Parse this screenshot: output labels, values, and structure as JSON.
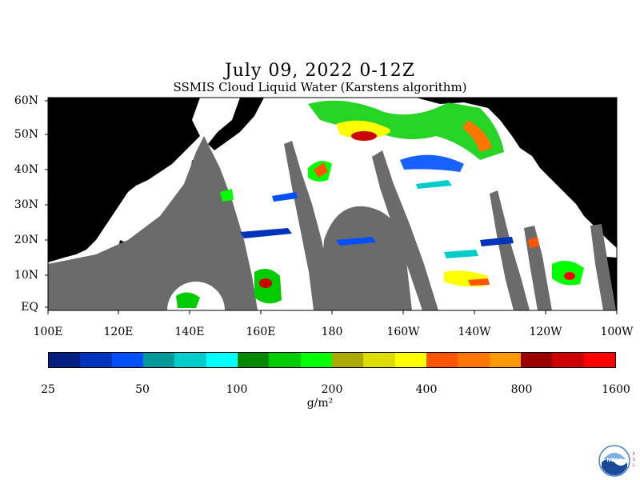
{
  "title": "July 09, 2022 0-12Z",
  "subtitle": "SSMIS Cloud Liquid Water (Karstens algorithm)",
  "lat_labels": [
    "60N",
    "50N",
    "40N",
    "30N",
    "20N",
    "10N",
    "EQ"
  ],
  "lon_labels": [
    "100E",
    "120E",
    "140E",
    "160E",
    "180",
    "160W",
    "140W",
    "120W",
    "100W"
  ],
  "colorbar": {
    "colors": [
      "#002080",
      "#0033bb",
      "#0050ff",
      "#009999",
      "#00cccc",
      "#00ffff",
      "#008800",
      "#00cc00",
      "#00ff00",
      "#aaaa00",
      "#dddd00",
      "#ffff00",
      "#ff5500",
      "#ff7700",
      "#ff9900",
      "#990000",
      "#cc0000",
      "#ff0000"
    ],
    "tick_labels": [
      "25",
      "50",
      "100",
      "200",
      "400",
      "800",
      "1600"
    ],
    "units": "g/m²"
  },
  "colors": {
    "land": "#000000",
    "no_data": "#6b6b6b",
    "clear": "#ffffff"
  },
  "logo": {
    "name": "noaa-logo",
    "text": "NOAA"
  }
}
